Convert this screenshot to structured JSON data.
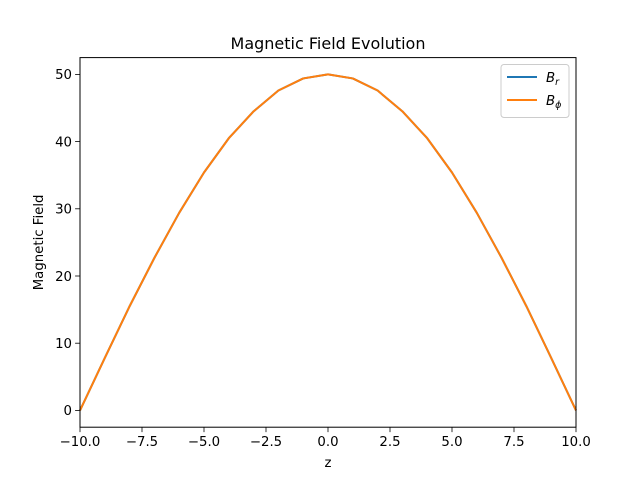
{
  "chart_data": {
    "type": "line",
    "title": "Magnetic Field Evolution",
    "xlabel": "z",
    "ylabel": "Magnetic Field",
    "xlim": [
      -10,
      10
    ],
    "ylim": [
      -2.5,
      52.5
    ],
    "xticks": [
      -10,
      -7.5,
      -5,
      -2.5,
      0,
      2.5,
      5,
      7.5,
      10
    ],
    "xtick_labels": [
      "−10.0",
      "−7.5",
      "−5.0",
      "−2.5",
      "0.0",
      "2.5",
      "5.0",
      "7.5",
      "10.0"
    ],
    "yticks": [
      0,
      10,
      20,
      30,
      40,
      50
    ],
    "ytick_labels": [
      "0",
      "10",
      "20",
      "30",
      "40",
      "50"
    ],
    "grid": false,
    "legend_position": "top-right",
    "series": [
      {
        "name": "Br",
        "legend_base": "B",
        "legend_sub": "r",
        "color": "#1f77b4",
        "x": [
          -10,
          -9,
          -8,
          -7,
          -6,
          -5,
          -4,
          -3,
          -2,
          -1,
          0,
          1,
          2,
          3,
          4,
          5,
          6,
          7,
          8,
          9,
          10
        ],
        "y": [
          0,
          7.8,
          15.5,
          22.7,
          29.4,
          35.4,
          40.5,
          44.5,
          47.6,
          49.4,
          50,
          49.4,
          47.6,
          44.5,
          40.5,
          35.4,
          29.4,
          22.7,
          15.5,
          7.8,
          0
        ]
      },
      {
        "name": "Bϕ",
        "legend_base": "B",
        "legend_sub": "ϕ",
        "color": "#ff7f0e",
        "x": [
          -10,
          -9,
          -8,
          -7,
          -6,
          -5,
          -4,
          -3,
          -2,
          -1,
          0,
          1,
          2,
          3,
          4,
          5,
          6,
          7,
          8,
          9,
          10
        ],
        "y": [
          0,
          7.8,
          15.5,
          22.7,
          29.4,
          35.4,
          40.5,
          44.5,
          47.6,
          49.4,
          50,
          49.4,
          47.6,
          44.5,
          40.5,
          35.4,
          29.4,
          22.7,
          15.5,
          7.8,
          0
        ]
      }
    ]
  }
}
